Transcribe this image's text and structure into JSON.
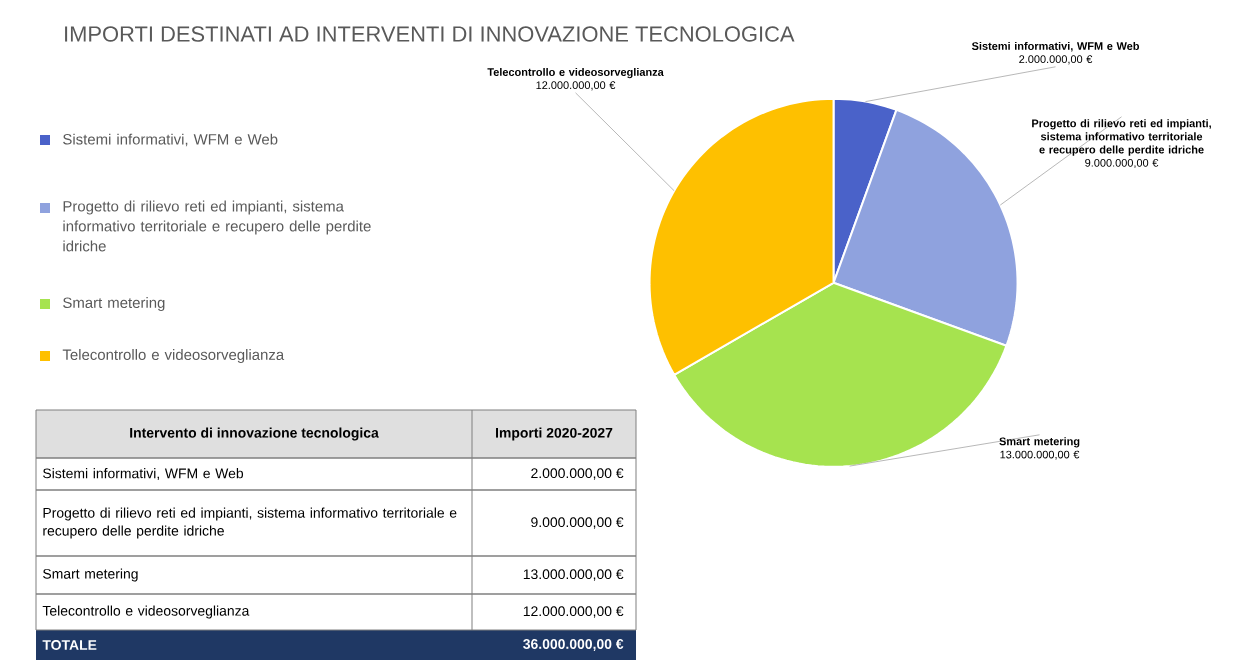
{
  "chart_data": {
    "type": "pie",
    "title": "IMPORTI DESTINATI AD INTERVENTI DI INNOVAZIONE TECNOLOGICA",
    "categories": [
      "Sistemi informativi, WFM e Web",
      "Progetto di rilievo reti ed impianti, sistema informativo territoriale e recupero delle perdite idriche",
      "Smart metering",
      "Telecontrollo e videosorveglianza"
    ],
    "values": [
      2000000,
      9000000,
      13000000,
      12000000
    ],
    "colors": [
      "#4a62c9",
      "#8fa2de",
      "#a6e34f",
      "#fec000"
    ],
    "value_labels": [
      "2.000.000,00 €",
      "9.000.000,00 €",
      "13.000.000,00 €",
      "12.000.000,00 €"
    ],
    "legend": "left",
    "annotations": [
      "Intervento di innovazione tecnologica",
      "Importi 2020-2027",
      "TOTALE",
      "36.000.000,00 €"
    ]
  }
}
